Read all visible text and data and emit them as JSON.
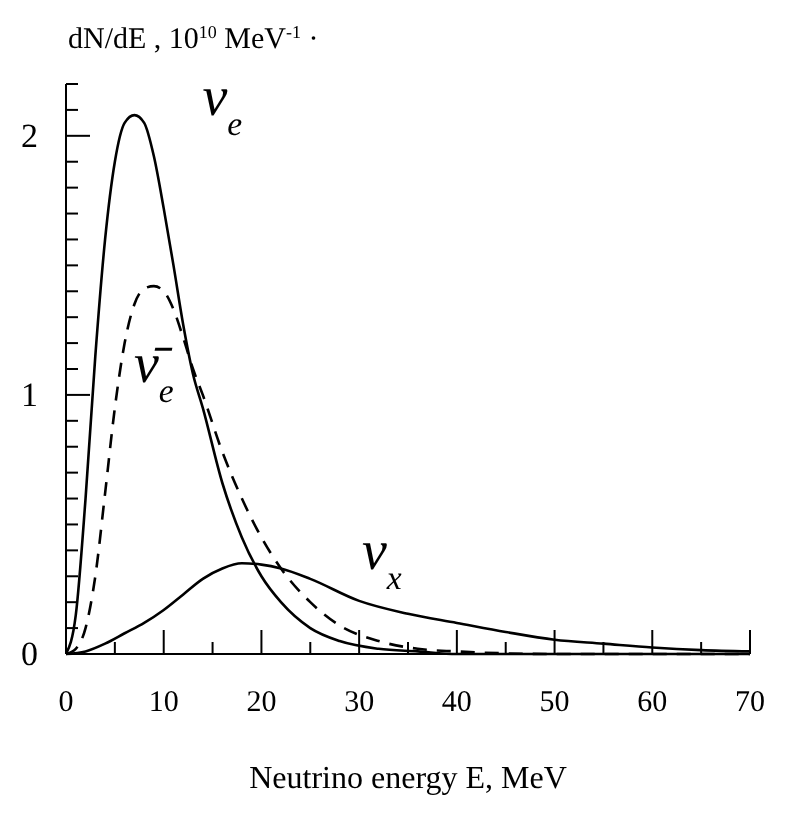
{
  "chart_data": {
    "type": "line",
    "ylabel": "dN/dE , 10$^{10}$ MeV$^{-1}$ ·",
    "xlabel": "Neutrino energy  E,  MeV",
    "xlim": [
      0,
      70
    ],
    "ylim": [
      0,
      2.2
    ],
    "xticks": [
      0,
      {
        "value": 5,
        "label": null
      },
      10,
      {
        "value": 15,
        "label": null
      },
      20,
      {
        "value": 25,
        "label": null
      },
      30,
      {
        "value": 35,
        "label": null
      },
      40,
      {
        "value": 45,
        "label": null
      },
      50,
      {
        "value": 55,
        "label": null
      },
      60,
      {
        "value": 65,
        "label": null
      },
      70
    ],
    "yticks": [
      0,
      {
        "value": 0.1,
        "label": null
      },
      {
        "value": 0.2,
        "label": null
      },
      {
        "value": 0.3,
        "label": null
      },
      {
        "value": 0.4,
        "label": null
      },
      {
        "value": 0.5,
        "label": null
      },
      {
        "value": 0.6,
        "label": null
      },
      {
        "value": 0.7,
        "label": null
      },
      {
        "value": 0.8,
        "label": null
      },
      {
        "value": 0.9,
        "label": null
      },
      1,
      {
        "value": 1.1,
        "label": null
      },
      {
        "value": 1.2,
        "label": null
      },
      {
        "value": 1.3,
        "label": null
      },
      {
        "value": 1.4,
        "label": null
      },
      {
        "value": 1.5,
        "label": null
      },
      {
        "value": 1.6,
        "label": null
      },
      {
        "value": 1.7,
        "label": null
      },
      {
        "value": 1.8,
        "label": null
      },
      {
        "value": 1.9,
        "label": null
      },
      2,
      {
        "value": 2.1,
        "label": null
      },
      {
        "value": 2.2,
        "label": null
      }
    ],
    "grid": false,
    "marker": "none",
    "series": [
      {
        "name": "ν$_{e}$",
        "color": "#000000",
        "line_style": "solid",
        "x": [
          0,
          1,
          2,
          3,
          4,
          5,
          6,
          7,
          8,
          9,
          10,
          11,
          12,
          13,
          14,
          16,
          18,
          20,
          22,
          25,
          28,
          32,
          36,
          40,
          50,
          70
        ],
        "values": [
          0,
          0.15,
          0.6,
          1.15,
          1.6,
          1.9,
          2.05,
          2.08,
          2.05,
          1.92,
          1.72,
          1.5,
          1.27,
          1.08,
          0.95,
          0.66,
          0.45,
          0.3,
          0.2,
          0.1,
          0.05,
          0.02,
          0.01,
          0,
          0,
          0
        ]
      },
      {
        "name": "ν̄$_{e}$",
        "color": "#000000",
        "line_style": "dashed",
        "x": [
          0,
          1,
          2,
          3,
          4,
          5,
          6,
          7,
          8,
          9,
          10,
          11,
          12,
          13,
          14,
          16,
          18,
          20,
          22,
          25,
          28,
          32,
          36,
          40,
          50,
          70
        ],
        "values": [
          0,
          0.02,
          0.1,
          0.3,
          0.62,
          0.95,
          1.2,
          1.35,
          1.41,
          1.42,
          1.4,
          1.33,
          1.22,
          1.1,
          1.0,
          0.78,
          0.6,
          0.45,
          0.33,
          0.2,
          0.11,
          0.05,
          0.02,
          0.01,
          0,
          0
        ]
      },
      {
        "name": "ν$_{x}$",
        "color": "#000000",
        "line_style": "solid",
        "x": [
          0,
          2,
          4,
          6,
          8,
          10,
          12,
          14,
          16,
          18,
          20,
          22,
          25,
          30,
          35,
          40,
          45,
          50,
          55,
          60,
          65,
          70
        ],
        "values": [
          0,
          0.01,
          0.04,
          0.08,
          0.12,
          0.17,
          0.23,
          0.29,
          0.33,
          0.35,
          0.345,
          0.33,
          0.29,
          0.205,
          0.155,
          0.12,
          0.085,
          0.055,
          0.04,
          0.025,
          0.015,
          0.01
        ]
      }
    ]
  }
}
